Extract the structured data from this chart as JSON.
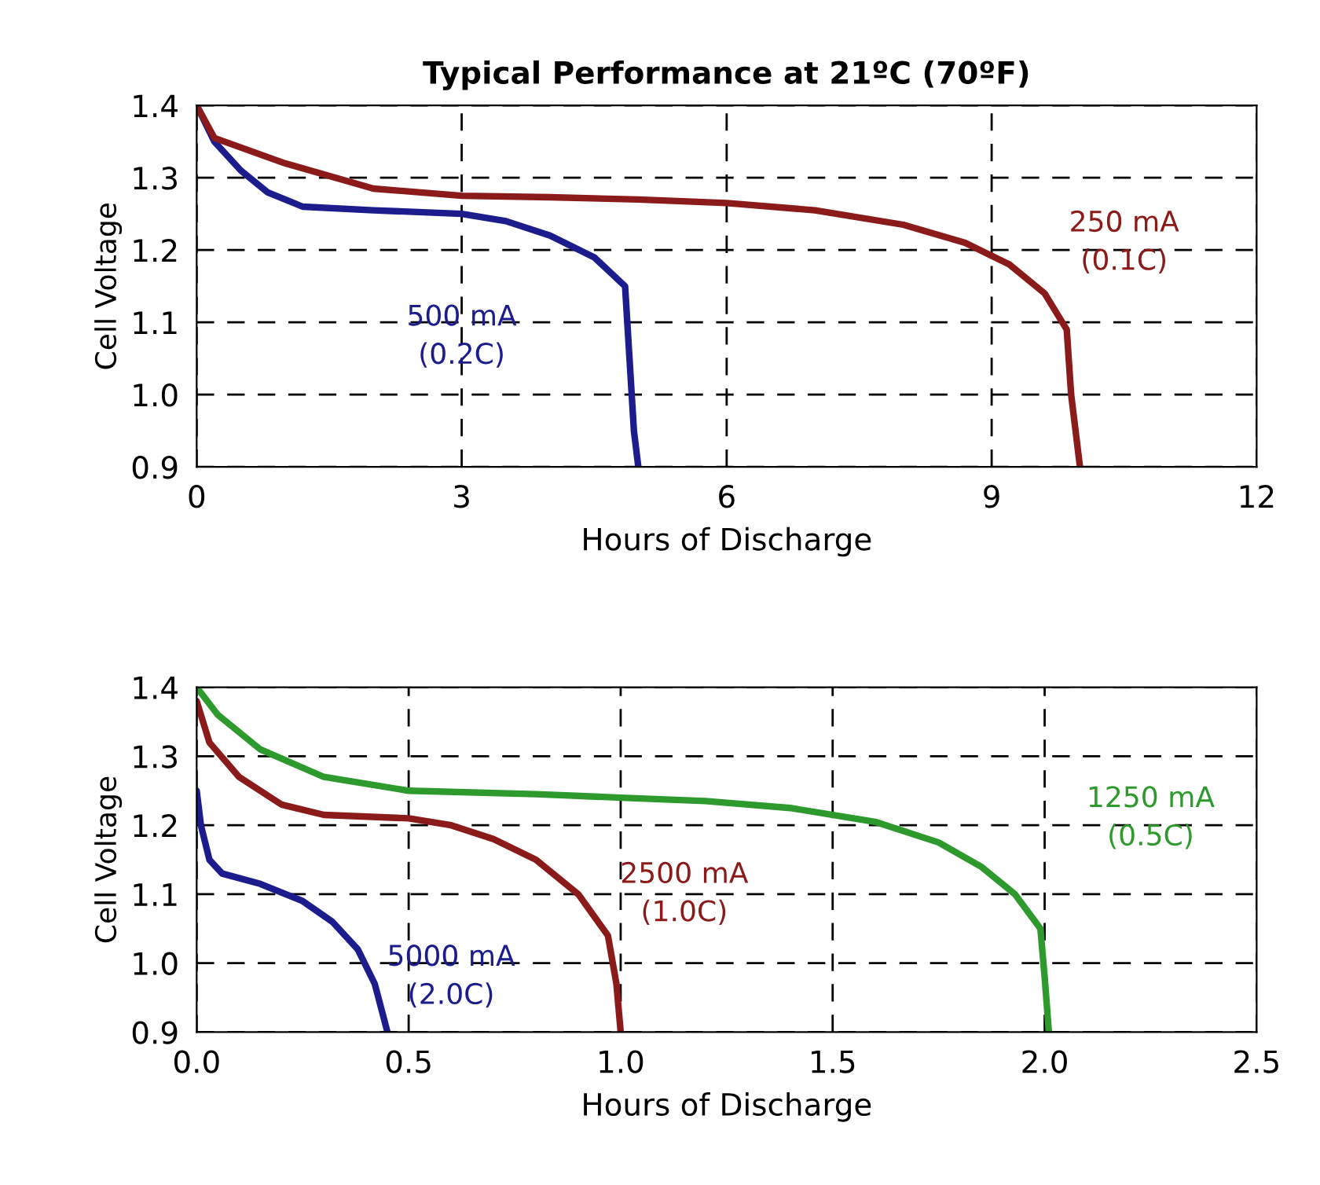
{
  "chart_data": [
    {
      "type": "line",
      "title": "Typical Performance at 21ºC (70ºF)",
      "xlabel": "Hours of Discharge",
      "ylabel": "Cell Voltage",
      "xlim": [
        0,
        12
      ],
      "ylim": [
        0.9,
        1.4
      ],
      "xticks": [
        0,
        3,
        6,
        9,
        12
      ],
      "yticks": [
        {
          "value": 0.9,
          "label": "0.9"
        },
        {
          "value": 1.0,
          "label": "1.0"
        },
        {
          "value": 1.1,
          "label": "1.1"
        },
        {
          "value": 1.2,
          "label": "1.2"
        },
        {
          "value": 1.3,
          "label": "1.3"
        },
        {
          "value": 1.4,
          "label": "1.4"
        }
      ],
      "grid": true,
      "legend": false,
      "line_style": "solid",
      "series": [
        {
          "name": "500 mA\n(0.2C)",
          "color": "#1c1c8c",
          "x": [
            0,
            0.2,
            0.5,
            0.8,
            1.2,
            2,
            3,
            3.5,
            4,
            4.5,
            4.85,
            4.9,
            4.95,
            5.0
          ],
          "values": [
            1.4,
            1.35,
            1.31,
            1.28,
            1.26,
            1.255,
            1.25,
            1.24,
            1.22,
            1.19,
            1.15,
            1.05,
            0.95,
            0.9
          ]
        },
        {
          "name": "250 mA\n(0.1C)",
          "color": "#8b1a1a",
          "x": [
            0,
            0.2,
            1,
            2,
            3,
            4,
            5,
            6,
            7,
            8,
            8.7,
            9.2,
            9.6,
            9.85,
            9.9,
            9.95,
            10.0
          ],
          "values": [
            1.4,
            1.355,
            1.32,
            1.285,
            1.275,
            1.273,
            1.27,
            1.265,
            1.255,
            1.235,
            1.21,
            1.18,
            1.14,
            1.09,
            1.0,
            0.95,
            0.9
          ]
        }
      ]
    },
    {
      "type": "line",
      "xlabel": "Hours of Discharge",
      "ylabel": "Cell Voltage",
      "xlim": [
        0,
        2.5
      ],
      "ylim": [
        0.9,
        1.4
      ],
      "xticks": [
        {
          "value": 0,
          "label": "0.0"
        },
        {
          "value": 0.5,
          "label": "0.5"
        },
        {
          "value": 1.0,
          "label": "1.0"
        },
        {
          "value": 1.5,
          "label": "1.5"
        },
        {
          "value": 2.0,
          "label": "2.0"
        },
        {
          "value": 2.5,
          "label": "2.5"
        }
      ],
      "yticks": [
        {
          "value": 0.9,
          "label": "0.9"
        },
        {
          "value": 1.0,
          "label": "1.0"
        },
        {
          "value": 1.1,
          "label": "1.1"
        },
        {
          "value": 1.2,
          "label": "1.2"
        },
        {
          "value": 1.3,
          "label": "1.3"
        },
        {
          "value": 1.4,
          "label": "1.4"
        }
      ],
      "grid": true,
      "legend": false,
      "line_style": "solid",
      "series": [
        {
          "name": "5000 mA\n(2.0C)",
          "color": "#1c1c8c",
          "x": [
            0,
            0.01,
            0.03,
            0.06,
            0.15,
            0.25,
            0.32,
            0.38,
            0.42,
            0.45
          ],
          "values": [
            1.25,
            1.2,
            1.15,
            1.13,
            1.115,
            1.09,
            1.06,
            1.02,
            0.97,
            0.9
          ]
        },
        {
          "name": "2500 mA\n(1.0C)",
          "color": "#8b1a1a",
          "x": [
            0,
            0.03,
            0.1,
            0.2,
            0.3,
            0.5,
            0.6,
            0.7,
            0.8,
            0.9,
            0.97,
            0.99,
            1.0
          ],
          "values": [
            1.38,
            1.32,
            1.27,
            1.23,
            1.215,
            1.21,
            1.2,
            1.18,
            1.15,
            1.1,
            1.04,
            0.97,
            0.9
          ]
        },
        {
          "name": "1250 mA\n(0.5C)",
          "color": "#2e9a2e",
          "x": [
            0,
            0.05,
            0.15,
            0.3,
            0.5,
            0.8,
            1.0,
            1.2,
            1.4,
            1.6,
            1.75,
            1.85,
            1.93,
            1.99,
            2.0,
            2.01
          ],
          "values": [
            1.4,
            1.36,
            1.31,
            1.27,
            1.25,
            1.245,
            1.24,
            1.235,
            1.225,
            1.205,
            1.175,
            1.14,
            1.1,
            1.05,
            0.98,
            0.9
          ]
        }
      ]
    }
  ]
}
